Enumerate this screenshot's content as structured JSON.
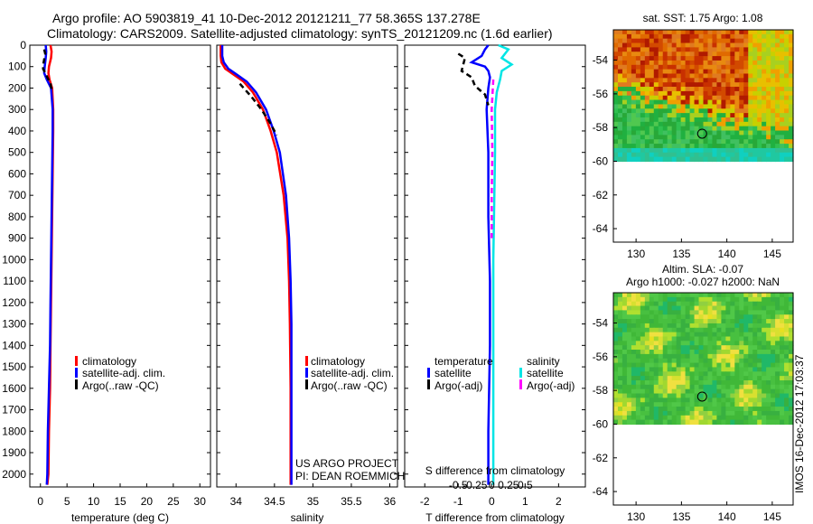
{
  "header": {
    "title_line1": "Argo profile: AO 5903819_41 10-Dec-2012 20121211_77 58.365S 137.278E",
    "title_line2": "Climatology: CARS2009. Satellite-adjusted climatology: synTS_20121209.nc (1.6d earlier)"
  },
  "colors": {
    "climatology": "#ff0000",
    "satellite": "#0000ff",
    "argo": "#000000",
    "satellite_salinity": "#00e5e5",
    "argo_salinity": "#ff00ff"
  },
  "depth_axis": {
    "ticks": [
      0,
      100,
      200,
      300,
      400,
      500,
      600,
      700,
      800,
      900,
      1000,
      1100,
      1200,
      1300,
      1400,
      1500,
      1600,
      1700,
      1800,
      1900,
      2000
    ],
    "ylim": [
      2060,
      0
    ]
  },
  "panel1": {
    "xlabel": "temperature (deg C)",
    "xticks": [
      0,
      5,
      10,
      15,
      20,
      25,
      30
    ],
    "xlim": [
      -2,
      32
    ],
    "legend": [
      "climatology",
      "satellite-adj. clim.",
      "Argo(..raw -QC)"
    ]
  },
  "panel2": {
    "xlabel": "salinity",
    "xticks": [
      34,
      34.5,
      35,
      35.5,
      36
    ],
    "xtick_labels": [
      "34",
      "34.5",
      "35",
      "35.5",
      "36"
    ],
    "xlim": [
      33.75,
      36.1
    ],
    "legend": [
      "climatology",
      "satellite-adj. clim.",
      "Argo(..raw -QC)"
    ],
    "credit_line1": "US ARGO PROJECT",
    "credit_line2": "PI: DEAN ROEMMICH"
  },
  "panel3": {
    "xlabel": "T difference from climatology",
    "top_label": "S difference from climatology",
    "t_ticks": [
      -2,
      -1,
      0,
      1,
      2
    ],
    "t_tick_labels": [
      "-2",
      "-1",
      "0",
      "1",
      "2"
    ],
    "s_ticks": [
      -0.5,
      -0.25,
      0,
      0.25,
      0.5
    ],
    "s_tick_labels": [
      "-0.5",
      "-0.25",
      "0",
      "0.25",
      "0.5"
    ],
    "xlim": [
      -2.6,
      2.8
    ],
    "legend_temp_title": "temperature",
    "legend_sal_title": "salinity",
    "legend_temp": [
      "satellite",
      "Argo(-adj)"
    ],
    "legend_sal": [
      "satellite",
      "Argo(-adj)"
    ]
  },
  "map1": {
    "title": "sat. SST: 1.75 Argo: 1.08",
    "yticks": [
      -54,
      -56,
      -58,
      -60,
      -62,
      -64
    ],
    "xticks": [
      130,
      135,
      140,
      145
    ],
    "xlim": [
      127.5,
      147.3
    ],
    "ylim": [
      -64.8,
      -52.2
    ],
    "data_lat_min": -60,
    "argo_position": [
      137.278,
      -58.365
    ]
  },
  "map2": {
    "title_line1": "Altim. SLA: -0.07",
    "title_line2": "Argo h1000: -0.027 h2000: NaN",
    "yticks": [
      -54,
      -56,
      -58,
      -60,
      -62,
      -64
    ],
    "xticks": [
      130,
      135,
      140,
      145
    ],
    "xlim": [
      127.5,
      147.3
    ],
    "ylim": [
      -64.8,
      -52.2
    ],
    "data_lat_min": -60,
    "argo_position": [
      137.278,
      -58.365
    ]
  },
  "side_label": "IMOS 16-Dec-2012 17:03:37",
  "chart_data": [
    {
      "type": "line",
      "title": "",
      "xlabel": "temperature (deg C)",
      "ylabel": "depth",
      "xlim": [
        -2,
        32
      ],
      "ylim": [
        2060,
        0
      ],
      "series": [
        {
          "name": "climatology",
          "x": [
            1.9,
            2.1,
            2.0,
            1.6,
            1.5,
            1.7,
            2.2,
            2.4,
            2.4,
            2.3,
            2.2,
            2.1,
            2.0,
            1.9,
            1.8,
            1.6,
            1.5,
            1.3
          ],
          "y": [
            0,
            30,
            60,
            100,
            130,
            160,
            200,
            300,
            400,
            600,
            800,
            1000,
            1200,
            1400,
            1600,
            1800,
            2000,
            2050
          ]
        },
        {
          "name": "satellite-adj. clim.",
          "x": [
            1.0,
            1.1,
            1.0,
            0.8,
            0.7,
            1.2,
            2.0,
            2.3,
            2.3,
            2.2,
            2.1,
            2.0,
            1.9,
            1.8,
            1.6,
            1.4,
            1.3,
            1.2
          ],
          "y": [
            0,
            30,
            60,
            100,
            130,
            160,
            200,
            300,
            400,
            600,
            800,
            1000,
            1200,
            1400,
            1600,
            1800,
            2000,
            2050
          ]
        },
        {
          "name": "Argo(..raw -QC)",
          "x": [
            0.7,
            0.9,
            0.6,
            0.5,
            1.1,
            1.9,
            2.2
          ],
          "y": [
            20,
            40,
            80,
            110,
            140,
            180,
            220
          ]
        }
      ]
    },
    {
      "type": "line",
      "title": "",
      "xlabel": "salinity",
      "ylabel": "depth",
      "xlim": [
        33.75,
        36.1
      ],
      "ylim": [
        2060,
        0
      ],
      "series": [
        {
          "name": "climatology",
          "x": [
            33.8,
            33.8,
            33.81,
            33.86,
            33.98,
            34.1,
            34.22,
            34.35,
            34.45,
            34.53,
            34.62,
            34.67,
            34.69,
            34.7,
            34.71,
            34.71,
            34.71
          ],
          "y": [
            0,
            50,
            80,
            110,
            140,
            170,
            220,
            300,
            400,
            500,
            700,
            900,
            1100,
            1300,
            1600,
            1900,
            2050
          ]
        },
        {
          "name": "satellite-adj. clim.",
          "x": [
            33.82,
            33.82,
            33.84,
            33.9,
            34.02,
            34.14,
            34.26,
            34.39,
            34.49,
            34.57,
            34.65,
            34.69,
            34.71,
            34.72,
            34.72,
            34.72,
            34.72
          ],
          "y": [
            0,
            50,
            80,
            110,
            140,
            170,
            220,
            300,
            400,
            500,
            700,
            900,
            1100,
            1300,
            1600,
            1900,
            2050
          ]
        },
        {
          "name": "Argo(..raw -QC)",
          "x": [
            34.05,
            34.2,
            34.33,
            34.44,
            34.53
          ],
          "y": [
            180,
            240,
            300,
            360,
            420
          ]
        }
      ]
    },
    {
      "type": "line",
      "title": "",
      "xlabel": "T difference from climatology",
      "ylabel": "depth",
      "xlim": [
        -2.6,
        2.8
      ],
      "ylim": [
        2060,
        0
      ],
      "series": [
        {
          "name": "temperature satellite",
          "x": [
            -0.1,
            -0.2,
            -0.3,
            -0.6,
            -0.2,
            -0.1,
            -0.05,
            -0.1,
            -0.15,
            -0.1,
            -0.1,
            -0.05,
            -0.05,
            -0.1,
            -0.1
          ],
          "y": [
            0,
            20,
            50,
            80,
            100,
            120,
            150,
            200,
            300,
            500,
            800,
            1100,
            1400,
            1800,
            2050
          ]
        },
        {
          "name": "temperature Argo(-adj)",
          "x": [
            -1.0,
            -0.8,
            -0.9,
            -0.6,
            -0.5,
            -0.2,
            -0.1
          ],
          "y": [
            40,
            60,
            120,
            150,
            190,
            230,
            280
          ]
        },
        {
          "name": "salinity satellite",
          "x": [
            0.2,
            0.5,
            0.3,
            0.6,
            0.3,
            0.25,
            0.15,
            0.1,
            0.1,
            0.05,
            0.05
          ],
          "y": [
            0,
            20,
            60,
            90,
            120,
            160,
            220,
            300,
            500,
            1000,
            2050
          ]
        },
        {
          "name": "salinity Argo(-adj)",
          "x": [
            0.05,
            0.0,
            0.02,
            0.0,
            0.0
          ],
          "y": [
            160,
            300,
            500,
            700,
            900
          ]
        }
      ]
    },
    {
      "type": "heatmap",
      "title": "sat. SST: 1.75 Argo: 1.08",
      "xlabel": "longitude",
      "ylabel": "latitude",
      "xlim": [
        127.5,
        147.3
      ],
      "ylim": [
        -64.8,
        -52.2
      ],
      "marker": [
        137.278,
        -58.365
      ]
    },
    {
      "type": "heatmap",
      "title": "Altim. SLA: -0.07 / Argo h1000: -0.027 h2000: NaN",
      "xlabel": "longitude",
      "ylabel": "latitude",
      "xlim": [
        127.5,
        147.3
      ],
      "ylim": [
        -64.8,
        -52.2
      ],
      "marker": [
        137.278,
        -58.365
      ]
    }
  ]
}
